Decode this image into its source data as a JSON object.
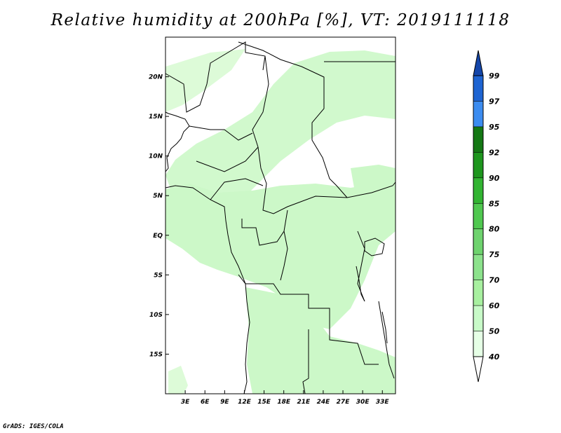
{
  "title": "Relative humidity at 200hPa [%], VT: 2019111118",
  "credit": "GrADS: IGES/COLA",
  "map": {
    "lon_range": [
      0,
      35
    ],
    "lat_range": [
      -20,
      25
    ],
    "lon_ticks": [
      "3E",
      "6E",
      "9E",
      "12E",
      "15E",
      "18E",
      "21E",
      "24E",
      "27E",
      "30E",
      "33E"
    ],
    "lat_ticks": [
      "20N",
      "15N",
      "10N",
      "5N",
      "EQ",
      "5S",
      "10S",
      "15S"
    ]
  },
  "colorbar": {
    "levels": [
      "40",
      "50",
      "60",
      "70",
      "75",
      "80",
      "85",
      "90",
      "92",
      "95",
      "97",
      "99"
    ],
    "colors": [
      "#ffffff",
      "#e6ffe6",
      "#c8fac8",
      "#a8f0a0",
      "#8ce28c",
      "#6ed36e",
      "#50c850",
      "#32b432",
      "#1e961e",
      "#147814",
      "#3c8cf0",
      "#1e64d2",
      "#1446aa"
    ]
  }
}
